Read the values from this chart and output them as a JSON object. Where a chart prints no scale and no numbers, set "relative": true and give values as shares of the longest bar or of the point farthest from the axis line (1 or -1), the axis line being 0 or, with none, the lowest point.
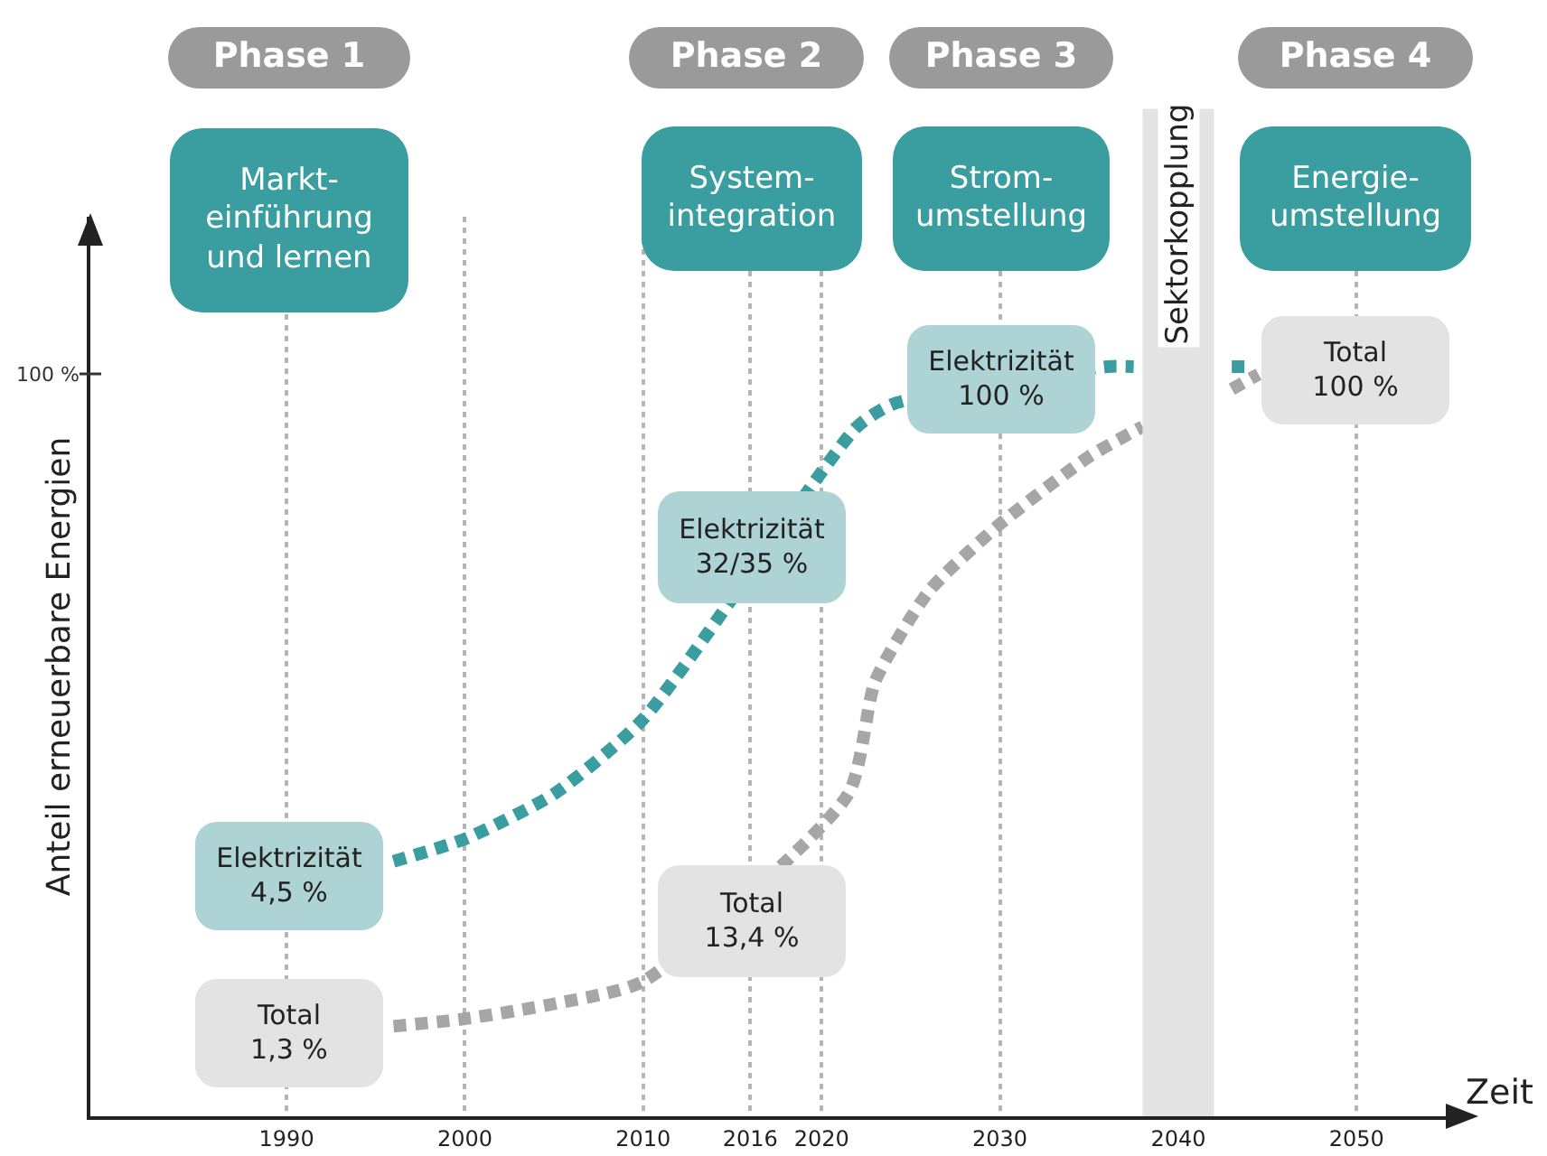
{
  "chart_data": {
    "type": "line",
    "relative": true,
    "xlabel": "Zeit",
    "ylabel": "Anteil erneuerbare Energien",
    "x": [
      1996,
      2000,
      2005,
      2010,
      2022,
      2024,
      2036,
      2037.5,
      2040,
      2043,
      2044
    ],
    "series": [
      {
        "color": "#3a9ea0",
        "values": [
          0.34,
          0.37,
          0.43,
          0.53,
          0.92,
          0.95,
          1.0,
          1.0,
          null,
          1.0,
          1.0
        ]
      },
      {
        "color": "#a6a6a6",
        "x": [
          1996,
          2000,
          2005,
          2010,
          2021.5,
          2023,
          2026,
          2030,
          2035,
          2038,
          2040,
          2043,
          2044.5
        ],
        "values": [
          0.12,
          0.13,
          0.15,
          0.18,
          0.43,
          0.58,
          0.7,
          0.79,
          0.88,
          0.92,
          null,
          0.97,
          0.99
        ]
      }
    ],
    "xlim": [
      1979,
      2055
    ],
    "xticks": [
      1990,
      2000,
      2010,
      2016,
      2020,
      2030,
      2040,
      2050
    ],
    "grid": "x",
    "marker": "none",
    "line_style": "dashed",
    "bands": [
      {
        "axis": "x",
        "from": 2038,
        "to": 2042,
        "label": "Sektorkopplung",
        "color": "#e3e3e3"
      }
    ],
    "annotations": [
      "Phase 1",
      "Markt-\neinführung\nund lernen",
      "Phase 2",
      "System-\nintegration",
      "Phase 3",
      "Strom-\numstellung",
      "Phase 4",
      "Energie-\numstellung",
      "100 %",
      "Elektrizität\n4,5 %",
      "Total\n1,3 %",
      "Elektrizität\n32/35 %",
      "Total\n13,4 %",
      "Elektrizität\n100 %",
      "Total\n100 %"
    ]
  }
}
